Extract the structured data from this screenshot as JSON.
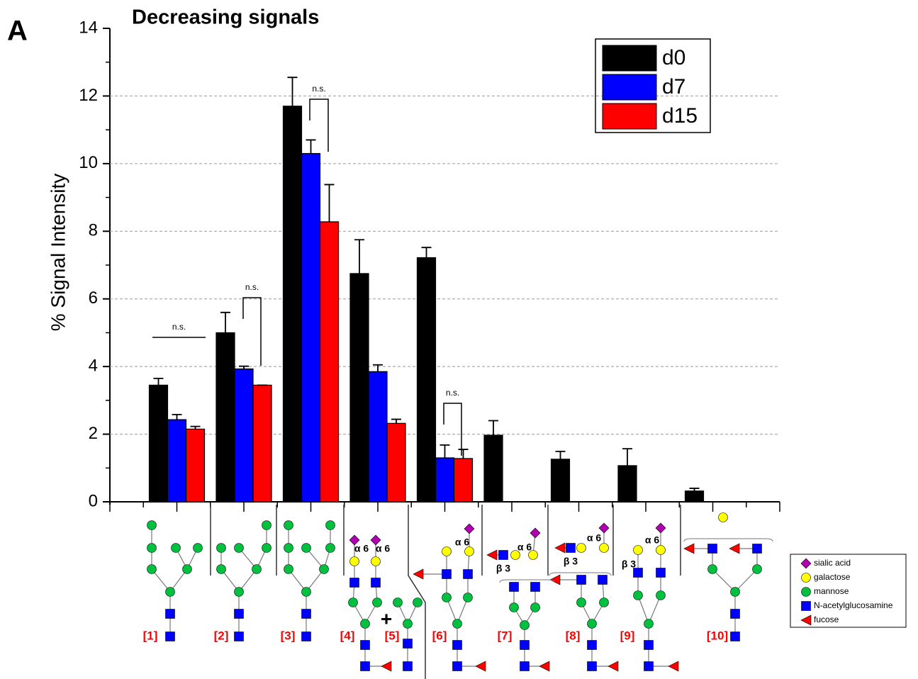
{
  "chart_data": {
    "type": "bar",
    "panel_label": "A",
    "title": "Decreasing signals",
    "y_label": "% Signal Intensity",
    "categories": [
      "[1]",
      "[2]",
      "[3]",
      "[4]",
      "[6]",
      "[7]",
      "[8]",
      "[9]",
      "[10]"
    ],
    "extra_structure": {
      "plus": "+",
      "label": "[5]"
    },
    "series": [
      {
        "name": "d0",
        "color": "#000000",
        "values": [
          3.45,
          5.0,
          11.7,
          6.75,
          7.22,
          1.97,
          1.26,
          1.07,
          0.32
        ],
        "errors": [
          0.2,
          0.6,
          0.85,
          1.0,
          0.3,
          0.43,
          0.23,
          0.5,
          0.08
        ]
      },
      {
        "name": "d7",
        "color": "#0000ff",
        "values": [
          2.43,
          3.93,
          10.3,
          3.85,
          1.3,
          0,
          0,
          0,
          0
        ],
        "errors": [
          0.15,
          0.08,
          0.4,
          0.2,
          0.38,
          0,
          0,
          0,
          0
        ]
      },
      {
        "name": "d15",
        "color": "#ff0000",
        "values": [
          2.15,
          3.45,
          8.28,
          2.32,
          1.28,
          0,
          0,
          0,
          0
        ],
        "errors": [
          0.08,
          0,
          1.1,
          0.12,
          0.27,
          0,
          0,
          0,
          0
        ]
      }
    ],
    "ylim": [
      0,
      14
    ],
    "yticks": [
      0,
      2,
      4,
      6,
      8,
      10,
      12,
      14
    ],
    "grid": true,
    "legend": "top-right",
    "annotations": [
      "n.s.",
      "n.s.",
      "n.s.",
      "n.s."
    ],
    "linkage_labels": [
      "α 6",
      "α 6",
      "α 6",
      "α 6",
      "β 3",
      "α 6",
      "β 3",
      "α 6",
      "β 3"
    ],
    "glycan_key": [
      {
        "name": "sialic acid",
        "color": "#b000b0"
      },
      {
        "name": "galactose",
        "color": "#ffff00"
      },
      {
        "name": "mannose",
        "color": "#00c040"
      },
      {
        "name": "N-acetylglucosamine",
        "color": "#0000ff"
      },
      {
        "name": "fucose",
        "color": "#ff0000"
      }
    ]
  }
}
